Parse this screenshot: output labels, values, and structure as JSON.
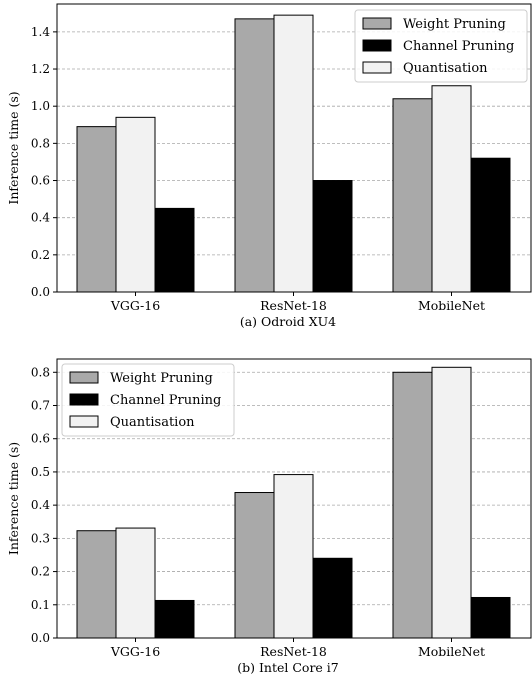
{
  "chart_data": [
    {
      "type": "bar",
      "caption": "(a) Odroid XU4",
      "ylabel": "Inference time (s)",
      "ylim": [
        0,
        1.55
      ],
      "yticks": [
        0.0,
        0.2,
        0.4,
        0.6,
        0.8,
        1.0,
        1.2,
        1.4
      ],
      "ytick_labels": [
        "0.0",
        "0.2",
        "0.4",
        "0.6",
        "0.8",
        "1.0",
        "1.2",
        "1.4"
      ],
      "categories": [
        "VGG-16",
        "ResNet-18",
        "MobileNet"
      ],
      "series": [
        {
          "name": "Weight Pruning",
          "color": "#a9a9a9",
          "values": [
            0.89,
            1.47,
            1.04
          ]
        },
        {
          "name": "Quantisation",
          "color": "#f2f2f2",
          "values": [
            0.94,
            1.49,
            1.11
          ]
        },
        {
          "name": "Channel Pruning",
          "color": "#000000",
          "values": [
            0.45,
            0.6,
            0.72
          ]
        }
      ],
      "legend_order": [
        0,
        2,
        1
      ],
      "legend_position": "top-right",
      "grid": "horizontal-dashed"
    },
    {
      "type": "bar",
      "caption": "(b) Intel Core i7",
      "ylabel": "Inference time (s)",
      "ylim": [
        0,
        0.84
      ],
      "yticks": [
        0.0,
        0.1,
        0.2,
        0.3,
        0.4,
        0.5,
        0.6,
        0.7,
        0.8
      ],
      "ytick_labels": [
        "0.0",
        "0.1",
        "0.2",
        "0.3",
        "0.4",
        "0.5",
        "0.6",
        "0.7",
        "0.8"
      ],
      "categories": [
        "VGG-16",
        "ResNet-18",
        "MobileNet"
      ],
      "series": [
        {
          "name": "Weight Pruning",
          "color": "#a9a9a9",
          "values": [
            0.323,
            0.438,
            0.8
          ]
        },
        {
          "name": "Quantisation",
          "color": "#f2f2f2",
          "values": [
            0.331,
            0.492,
            0.815
          ]
        },
        {
          "name": "Channel Pruning",
          "color": "#000000",
          "values": [
            0.113,
            0.24,
            0.122
          ]
        }
      ],
      "legend_order": [
        0,
        2,
        1
      ],
      "legend_position": "top-left",
      "grid": "horizontal-dashed"
    }
  ]
}
